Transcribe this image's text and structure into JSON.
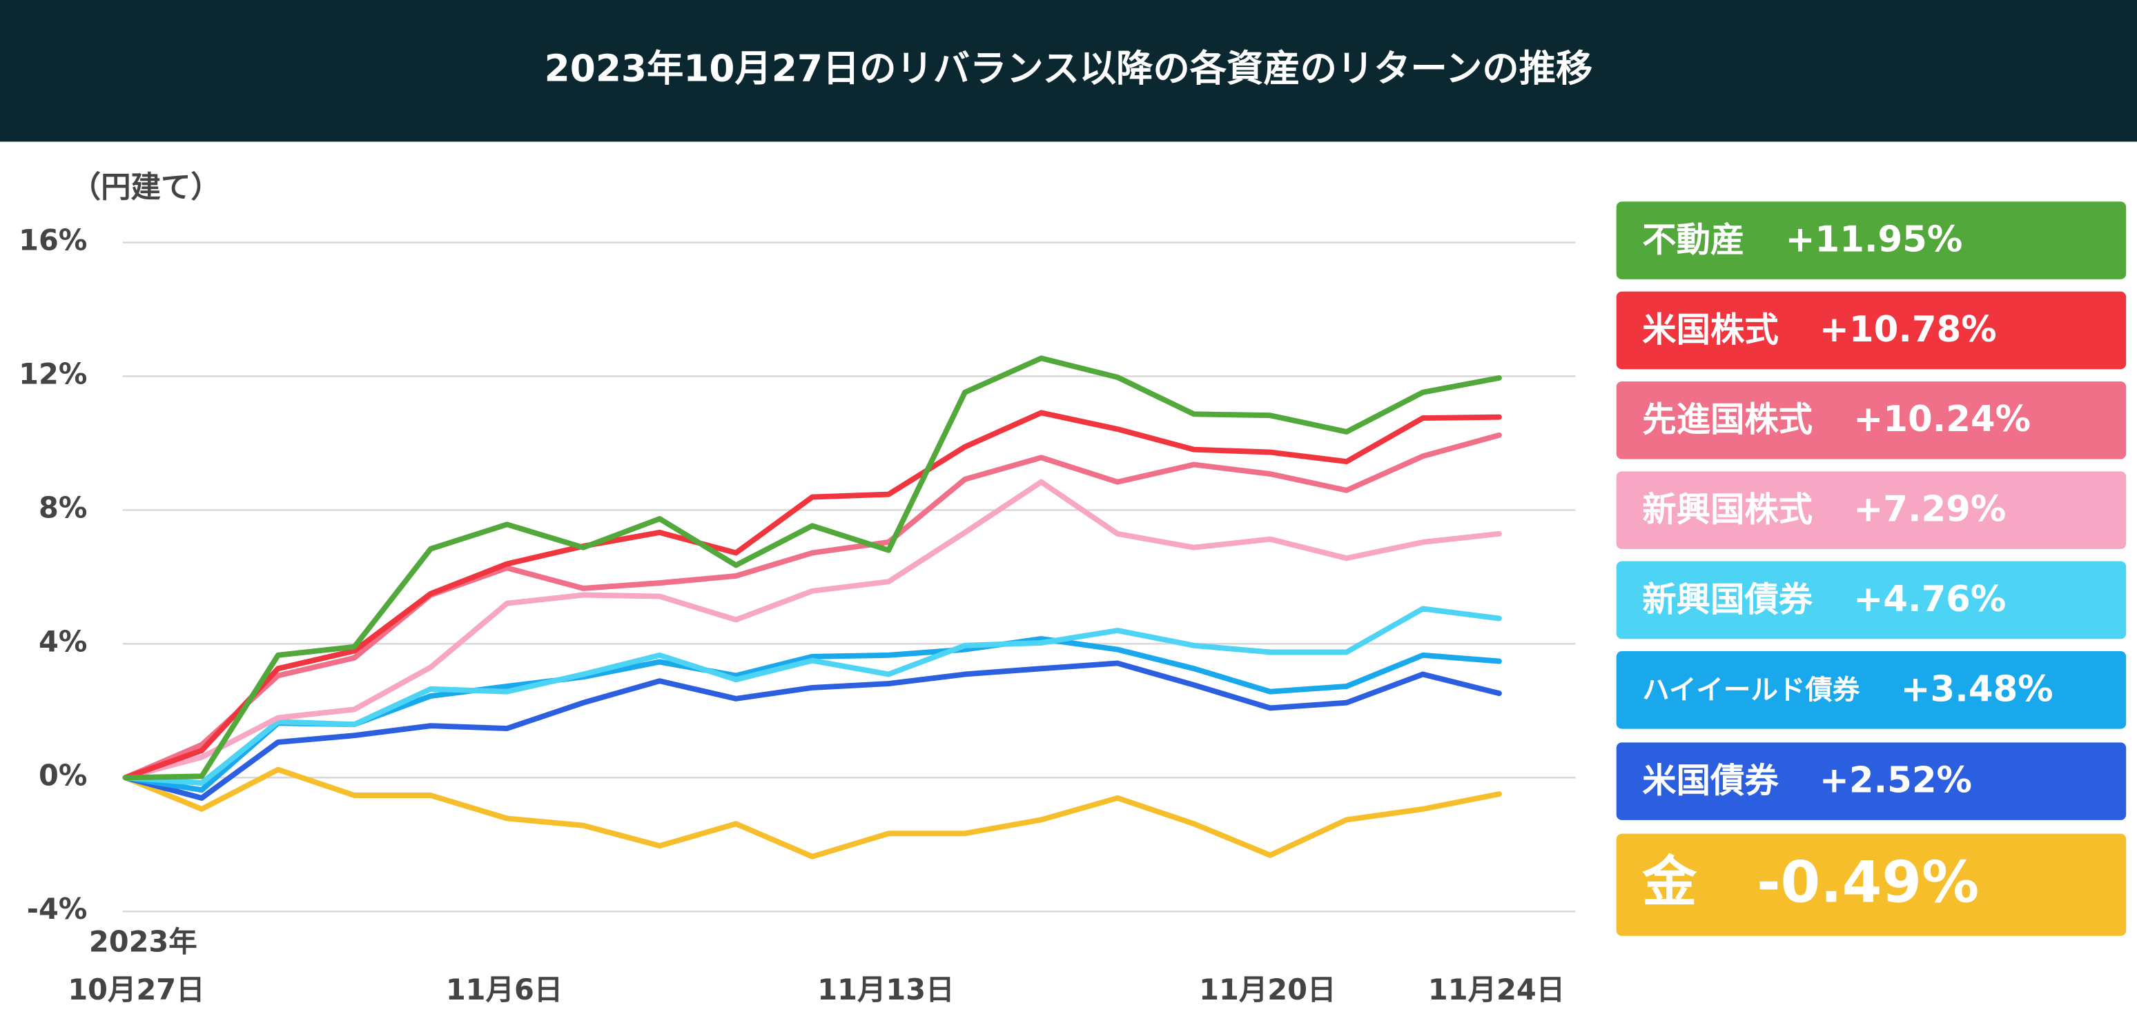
{
  "chart_data": {
    "type": "line",
    "title": "2023年10月27日のリバランス以降の各資産のリターンの推移",
    "y_axis_label": "（円建て）",
    "year_label": "2023年",
    "categories": [
      "10月27日",
      null,
      null,
      null,
      null,
      "11月6日",
      null,
      null,
      null,
      null,
      "11月13日",
      null,
      null,
      null,
      null,
      "11月20日",
      null,
      null,
      "11月24日"
    ],
    "ylim": [
      -4,
      16
    ],
    "yticks": [
      {
        "value": -4,
        "label": "-4%"
      },
      {
        "value": 0,
        "label": "0%"
      },
      {
        "value": 4,
        "label": "4%"
      },
      {
        "value": 8,
        "label": "8%"
      },
      {
        "value": 12,
        "label": "12%"
      },
      {
        "value": 16,
        "label": "16%"
      }
    ],
    "grid": true,
    "series": [
      {
        "name": "不動産",
        "color": "#52a83a",
        "end_label": "+11.95%",
        "values": [
          0,
          0.04,
          3.66,
          3.91,
          6.84,
          7.57,
          6.88,
          7.74,
          6.35,
          7.53,
          6.8,
          11.52,
          12.54,
          11.97,
          10.87,
          10.83,
          10.34,
          11.52,
          11.95
        ]
      },
      {
        "name": "米国株式",
        "color": "#f0353f",
        "end_label": "+10.78%",
        "values": [
          0,
          0.81,
          3.26,
          3.79,
          5.5,
          6.39,
          6.92,
          7.33,
          6.72,
          8.39,
          8.47,
          9.89,
          10.91,
          10.42,
          9.81,
          9.73,
          9.45,
          10.75,
          10.78
        ]
      },
      {
        "name": "先進国株式",
        "color": "#f0708a",
        "end_label": "+10.24%",
        "values": [
          0,
          0.98,
          3.05,
          3.58,
          5.46,
          6.27,
          5.66,
          5.82,
          6.03,
          6.72,
          7.04,
          8.92,
          9.57,
          8.84,
          9.36,
          9.08,
          8.59,
          9.61,
          10.24
        ]
      },
      {
        "name": "新興国株式",
        "color": "#f7a6c4",
        "end_label": "+7.29%",
        "values": [
          0,
          0.61,
          1.79,
          2.04,
          3.3,
          5.21,
          5.46,
          5.42,
          4.72,
          5.58,
          5.86,
          7.33,
          8.84,
          7.29,
          6.88,
          7.13,
          6.56,
          7.04,
          7.29
        ]
      },
      {
        "name": "新興国債券",
        "color": "#4dd4f5",
        "end_label": "+4.76%",
        "values": [
          0,
          -0.16,
          1.67,
          1.59,
          2.65,
          2.57,
          3.09,
          3.66,
          2.93,
          3.5,
          3.09,
          3.95,
          4.03,
          4.4,
          3.95,
          3.75,
          3.75,
          5.05,
          4.76
        ]
      },
      {
        "name": "ハイイールド債券",
        "color": "#19a8ec",
        "end_label": "+3.48%",
        "values": [
          0,
          -0.37,
          1.63,
          1.59,
          2.44,
          2.73,
          3.01,
          3.46,
          3.05,
          3.62,
          3.66,
          3.83,
          4.15,
          3.83,
          3.26,
          2.57,
          2.73,
          3.66,
          3.48
        ]
      },
      {
        "name": "米国債券",
        "color": "#2b5fe0",
        "end_label": "+2.52%",
        "values": [
          0,
          -0.61,
          1.06,
          1.26,
          1.55,
          1.47,
          2.24,
          2.89,
          2.36,
          2.69,
          2.81,
          3.09,
          3.26,
          3.42,
          2.77,
          2.08,
          2.24,
          3.09,
          2.52
        ]
      },
      {
        "name": "金",
        "color": "#f5be2a",
        "end_label": "-0.49%",
        "values": [
          0,
          -0.94,
          0.24,
          -0.53,
          -0.53,
          -1.22,
          -1.43,
          -2.04,
          -1.38,
          -2.36,
          -1.67,
          -1.67,
          -1.26,
          -0.61,
          -1.38,
          -2.32,
          -1.26,
          -0.94,
          -0.49
        ]
      }
    ]
  }
}
